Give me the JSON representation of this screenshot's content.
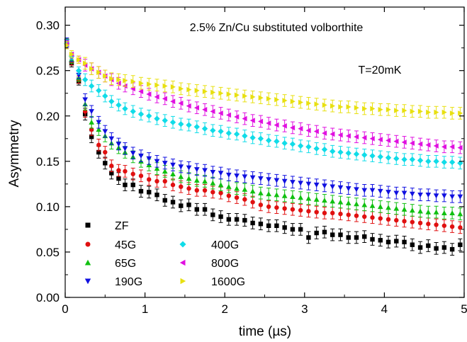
{
  "chart_data": {
    "type": "scatter",
    "title": "",
    "xlabel": "time (µs)",
    "ylabel": "Asymmetry",
    "xlim": [
      0,
      5
    ],
    "ylim": [
      0.0,
      0.32
    ],
    "xticks": [
      0,
      1,
      2,
      3,
      4,
      5
    ],
    "yticks": [
      0.0,
      0.05,
      0.1,
      0.15,
      0.2,
      0.25,
      0.3
    ],
    "ytick_labels": [
      "0.00",
      "0.05",
      "0.10",
      "0.15",
      "0.20",
      "0.25",
      "0.30"
    ],
    "grid": false,
    "legend_position": "bottom-left",
    "annotations": [
      "2.5% Zn/Cu substituted volborthite",
      "T=20mK"
    ],
    "x": [
      0.02,
      0.08,
      0.17,
      0.25,
      0.33,
      0.42,
      0.5,
      0.58,
      0.67,
      0.75,
      0.85,
      0.95,
      1.05,
      1.15,
      1.25,
      1.35,
      1.45,
      1.55,
      1.65,
      1.75,
      1.85,
      1.95,
      2.05,
      2.15,
      2.25,
      2.35,
      2.45,
      2.55,
      2.65,
      2.75,
      2.85,
      2.95,
      3.05,
      3.15,
      3.25,
      3.35,
      3.45,
      3.55,
      3.65,
      3.75,
      3.85,
      3.95,
      4.05,
      4.15,
      4.25,
      4.35,
      4.45,
      4.55,
      4.65,
      4.75,
      4.85,
      4.95
    ],
    "series": [
      {
        "name": "ZF",
        "color": "#000000",
        "marker": "square",
        "values": [
          0.28,
          0.258,
          0.238,
          0.202,
          0.177,
          0.16,
          0.148,
          0.137,
          0.131,
          0.124,
          0.124,
          0.117,
          0.116,
          0.113,
          0.107,
          0.105,
          0.101,
          0.102,
          0.097,
          0.097,
          0.091,
          0.089,
          0.086,
          0.086,
          0.085,
          0.082,
          0.081,
          0.079,
          0.079,
          0.077,
          0.075,
          0.075,
          0.066,
          0.071,
          0.072,
          0.069,
          0.069,
          0.066,
          0.066,
          0.067,
          0.064,
          0.063,
          0.061,
          0.062,
          0.061,
          0.058,
          0.055,
          0.057,
          0.054,
          0.055,
          0.053,
          0.058
        ]
      },
      {
        "name": "45G",
        "color": "#e01010",
        "marker": "circle",
        "values": [
          0.281,
          0.26,
          0.24,
          0.205,
          0.185,
          0.168,
          0.16,
          0.145,
          0.14,
          0.139,
          0.136,
          0.134,
          0.13,
          0.128,
          0.128,
          0.124,
          0.122,
          0.12,
          0.118,
          0.118,
          0.116,
          0.115,
          0.112,
          0.11,
          0.108,
          0.105,
          0.102,
          0.1,
          0.099,
          0.098,
          0.097,
          0.096,
          0.095,
          0.094,
          0.093,
          0.093,
          0.092,
          0.091,
          0.09,
          0.089,
          0.088,
          0.087,
          0.086,
          0.085,
          0.084,
          0.083,
          0.082,
          0.081,
          0.08,
          0.079,
          0.078,
          0.077
        ]
      },
      {
        "name": "65G",
        "color": "#10c010",
        "marker": "triangle-up",
        "values": [
          0.281,
          0.262,
          0.242,
          0.213,
          0.193,
          0.185,
          0.178,
          0.17,
          0.165,
          0.16,
          0.155,
          0.15,
          0.146,
          0.142,
          0.139,
          0.136,
          0.133,
          0.131,
          0.129,
          0.128,
          0.126,
          0.124,
          0.122,
          0.12,
          0.119,
          0.117,
          0.115,
          0.114,
          0.113,
          0.112,
          0.111,
          0.11,
          0.109,
          0.108,
          0.107,
          0.106,
          0.105,
          0.104,
          0.103,
          0.102,
          0.101,
          0.1,
          0.099,
          0.098,
          0.097,
          0.096,
          0.095,
          0.094,
          0.094,
          0.093,
          0.093,
          0.092
        ]
      },
      {
        "name": "190G",
        "color": "#1010e0",
        "marker": "triangle-down",
        "values": [
          0.282,
          0.264,
          0.245,
          0.218,
          0.205,
          0.193,
          0.183,
          0.175,
          0.169,
          0.164,
          0.159,
          0.156,
          0.153,
          0.15,
          0.148,
          0.146,
          0.144,
          0.143,
          0.141,
          0.14,
          0.138,
          0.137,
          0.135,
          0.134,
          0.133,
          0.132,
          0.131,
          0.13,
          0.129,
          0.128,
          0.127,
          0.126,
          0.125,
          0.124,
          0.123,
          0.122,
          0.121,
          0.12,
          0.119,
          0.118,
          0.118,
          0.117,
          0.116,
          0.115,
          0.115,
          0.114,
          0.113,
          0.113,
          0.112,
          0.112,
          0.111,
          0.111
        ]
      },
      {
        "name": "400G",
        "color": "#10dce8",
        "marker": "diamond",
        "values": [
          0.28,
          0.266,
          0.25,
          0.24,
          0.233,
          0.228,
          0.222,
          0.216,
          0.212,
          0.208,
          0.205,
          0.202,
          0.2,
          0.197,
          0.195,
          0.193,
          0.191,
          0.19,
          0.188,
          0.186,
          0.184,
          0.183,
          0.181,
          0.18,
          0.178,
          0.176,
          0.175,
          0.173,
          0.172,
          0.17,
          0.169,
          0.167,
          0.166,
          0.164,
          0.163,
          0.161,
          0.16,
          0.159,
          0.158,
          0.157,
          0.156,
          0.155,
          0.154,
          0.153,
          0.152,
          0.152,
          0.151,
          0.15,
          0.15,
          0.149,
          0.149,
          0.148
        ]
      },
      {
        "name": "800G",
        "color": "#e010e0",
        "marker": "triangle-left",
        "values": [
          0.279,
          0.268,
          0.262,
          0.256,
          0.252,
          0.248,
          0.244,
          0.24,
          0.236,
          0.233,
          0.23,
          0.227,
          0.224,
          0.221,
          0.219,
          0.216,
          0.214,
          0.211,
          0.209,
          0.207,
          0.205,
          0.203,
          0.201,
          0.199,
          0.197,
          0.195,
          0.194,
          0.192,
          0.19,
          0.189,
          0.187,
          0.186,
          0.184,
          0.183,
          0.181,
          0.18,
          0.179,
          0.178,
          0.177,
          0.176,
          0.175,
          0.174,
          0.173,
          0.172,
          0.171,
          0.17,
          0.169,
          0.168,
          0.167,
          0.166,
          0.166,
          0.165
        ]
      },
      {
        "name": "1600G",
        "color": "#e8e010",
        "marker": "triangle-right",
        "values": [
          0.278,
          0.268,
          0.262,
          0.258,
          0.252,
          0.248,
          0.244,
          0.241,
          0.24,
          0.239,
          0.238,
          0.236,
          0.235,
          0.234,
          0.233,
          0.232,
          0.23,
          0.229,
          0.228,
          0.227,
          0.226,
          0.225,
          0.224,
          0.223,
          0.222,
          0.221,
          0.22,
          0.219,
          0.218,
          0.217,
          0.216,
          0.215,
          0.214,
          0.213,
          0.212,
          0.211,
          0.21,
          0.21,
          0.209,
          0.208,
          0.208,
          0.207,
          0.207,
          0.206,
          0.206,
          0.205,
          0.205,
          0.204,
          0.204,
          0.204,
          0.203,
          0.203
        ]
      }
    ]
  }
}
